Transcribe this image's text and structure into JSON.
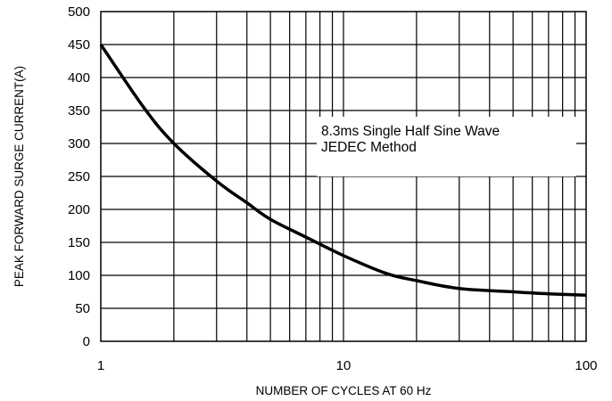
{
  "chart_data": {
    "type": "line",
    "title": "",
    "xlabel": "NUMBER OF CYCLES AT 60 Hz",
    "ylabel": "PEAK FORWARD SURGE CURRENT(A)",
    "x_scale": "log",
    "xlim": [
      1,
      100
    ],
    "ylim": [
      0,
      500
    ],
    "x_ticks": [
      "1",
      "10",
      "100"
    ],
    "y_ticks": [
      "0",
      "50",
      "100",
      "150",
      "200",
      "250",
      "300",
      "350",
      "400",
      "450",
      "500"
    ],
    "grid": true,
    "annotation": [
      "8.3ms Single Half Sine Wave",
      "JEDEC Method"
    ],
    "series": [
      {
        "color": "#000000",
        "x": [
          1,
          1.5,
          2,
          3,
          4,
          5,
          7,
          10,
          15,
          20,
          30,
          50,
          70,
          100
        ],
        "y": [
          450,
          355,
          300,
          243,
          210,
          185,
          158,
          130,
          103,
          92,
          80,
          75,
          72,
          70
        ]
      }
    ]
  }
}
